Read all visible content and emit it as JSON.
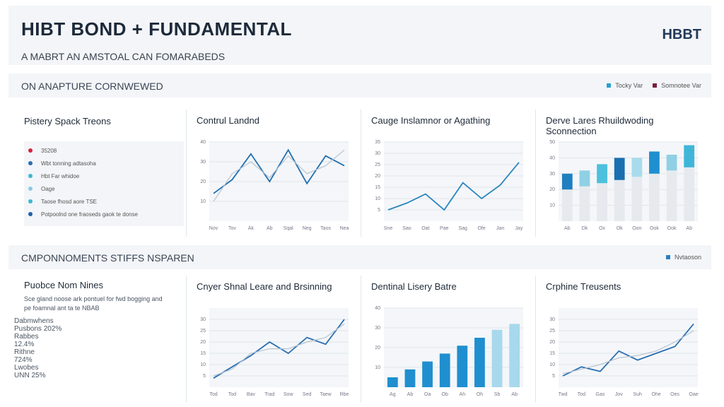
{
  "header": {
    "title": "HIBT BOND  +  FUNDAMENTAL",
    "subtitle": "A MABRT AN AMSTOAL CAN FOMARABEDS",
    "logo": "HBBT"
  },
  "sections": [
    {
      "title": "ON ANAPTURE CORNWEWED",
      "legend": [
        {
          "name": "Tocky Var",
          "color": "#2a9fd0"
        },
        {
          "name": "Somnotee Var",
          "color": "#7a1f3a"
        }
      ]
    },
    {
      "title": "CMPONNOMENTS STIFFS NSPAREN",
      "legend": [
        {
          "name": "Nvtaoson",
          "color": "#2a7fc0"
        }
      ]
    }
  ],
  "list_panel": {
    "title": "Pistery Spack Treons",
    "items": [
      {
        "text": "35208",
        "color": "#d0253a"
      },
      {
        "text": "Wbt tonning adtasoha",
        "color": "#2a6fb0"
      },
      {
        "text": "Hbt Far whidoe",
        "color": "#3fb6d0"
      },
      {
        "text": "Oage",
        "color": "#8ec9e0"
      },
      {
        "text": "Taose fhosd aore TSE",
        "color": "#3fb6d0"
      },
      {
        "text": "Potpoolnd one fraoseds gaok te donse",
        "color": "#1f5fa8"
      }
    ]
  },
  "stats_panel": {
    "title": "Puobce Nom Nines",
    "text": "Sce gland noose ark pontuel for fwd bogging and pe foamnal ant ta te NBAB",
    "stats": [
      {
        "label": "Dabmwhens",
        "value": "Pusbons 202%"
      },
      {
        "label": "Rabbes",
        "value": "12.4%"
      },
      {
        "label": "Rithne",
        "value": "724%"
      },
      {
        "label": "Lwobes",
        "value": "UNN 25%"
      }
    ]
  },
  "chart_data": [
    {
      "type": "line",
      "title": "Contrul Landnd",
      "categories": [
        "Nov",
        "Tov",
        "Ak",
        "Ab",
        "Sqal",
        "Neg",
        "Taos",
        "Nea"
      ],
      "series": [
        {
          "name": "Tocky Var",
          "color": "#1f6fb0",
          "values": [
            14,
            21,
            34,
            20,
            36,
            19,
            33,
            28
          ]
        },
        {
          "name": "Somnotee Var",
          "color": "#b8c4d0",
          "values": [
            10,
            24,
            30,
            22,
            33,
            24,
            28,
            36
          ]
        }
      ],
      "ylim": [
        0,
        40
      ],
      "yticks": [
        10,
        20,
        30,
        40
      ],
      "grid": true
    },
    {
      "type": "line",
      "title": "Cauge Inslamnor or Agathing",
      "categories": [
        "Sne",
        "Sao",
        "Oat",
        "Pae",
        "Sag",
        "Ofe",
        "Jan",
        "Jay"
      ],
      "series": [
        {
          "name": "Tocky Var",
          "color": "#2a86c0",
          "values": [
            5,
            8,
            12,
            5,
            17,
            10,
            16,
            26
          ]
        }
      ],
      "ylim": [
        0,
        35
      ],
      "yticks": [
        5,
        10,
        15,
        20,
        25,
        30,
        35
      ],
      "grid": true
    },
    {
      "type": "stacked-bar",
      "title": "Derve Lares Rhuildwoding Sconnection",
      "categories": [
        "Ab",
        "Dk",
        "Ox",
        "Ok",
        "Oon",
        "Ook",
        "Ook",
        "Ab"
      ],
      "series": [
        {
          "name": "Somnotee Var",
          "color": "#e6eaee",
          "values": [
            20,
            22,
            24,
            26,
            28,
            30,
            32,
            34
          ]
        },
        {
          "name": "Tocky Var",
          "colors": [
            "#1f7fc0",
            "#8fd0e4",
            "#4cc0dc",
            "#1a6fb0",
            "#a8dcec",
            "#1f8fd0",
            "#8fd0e4",
            "#3fb6d8"
          ],
          "values": [
            10,
            10,
            12,
            14,
            12,
            14,
            10,
            14
          ]
        }
      ],
      "ylim": [
        0,
        50
      ],
      "yticks": [
        10,
        20,
        30,
        40,
        50
      ],
      "grid": true
    },
    {
      "type": "line",
      "title": "Cnyer Shnal Leare and Brsinning",
      "categories": [
        "Tod",
        "Tod",
        "Bav",
        "Trad",
        "Sow",
        "Sed",
        "Taew",
        "Rbe"
      ],
      "series": [
        {
          "name": "Tocky Var",
          "color": "#2a6fb0",
          "values": [
            4,
            9,
            14,
            20,
            15,
            22,
            19,
            30
          ]
        },
        {
          "name": "Somnotee Var",
          "color": "#b8c4d0",
          "values": [
            5,
            8,
            15,
            17,
            17,
            20,
            22,
            28
          ]
        }
      ],
      "ylim": [
        0,
        35
      ],
      "yticks": [
        5,
        10,
        15,
        20,
        25,
        30
      ],
      "grid": true
    },
    {
      "type": "bar",
      "title": "Dentinal Lisery Batre",
      "categories": [
        "Ag",
        "Ab",
        "Oa",
        "Ob",
        "Ah",
        "Oh",
        "Sb",
        "Ab"
      ],
      "values": [
        5,
        9,
        13,
        17,
        21,
        25,
        29,
        32
      ],
      "colors": [
        "#1f8fd0",
        "#1f8fd0",
        "#1f8fd0",
        "#1f8fd0",
        "#1f8fd0",
        "#1f8fd0",
        "#a8d8ec",
        "#a8d8ec"
      ],
      "ylim": [
        0,
        40
      ],
      "yticks": [
        10,
        20,
        30,
        40
      ],
      "grid": true
    },
    {
      "type": "line",
      "title": "Crphine Treusents",
      "categories": [
        "Twd",
        "Tod",
        "Gas",
        "Jov",
        "Suh",
        "Ohe",
        "Oes",
        "Oae"
      ],
      "series": [
        {
          "name": "Tocky Var",
          "color": "#2a6fb0",
          "values": [
            5,
            9,
            7,
            16,
            12,
            15,
            18,
            28
          ]
        },
        {
          "name": "Somnotee Var",
          "color": "#b8c4d0",
          "values": [
            6,
            8,
            10,
            13,
            14,
            16,
            20,
            25
          ]
        }
      ],
      "ylim": [
        0,
        35
      ],
      "yticks": [
        5,
        10,
        15,
        20,
        25,
        30
      ],
      "grid": true
    }
  ]
}
